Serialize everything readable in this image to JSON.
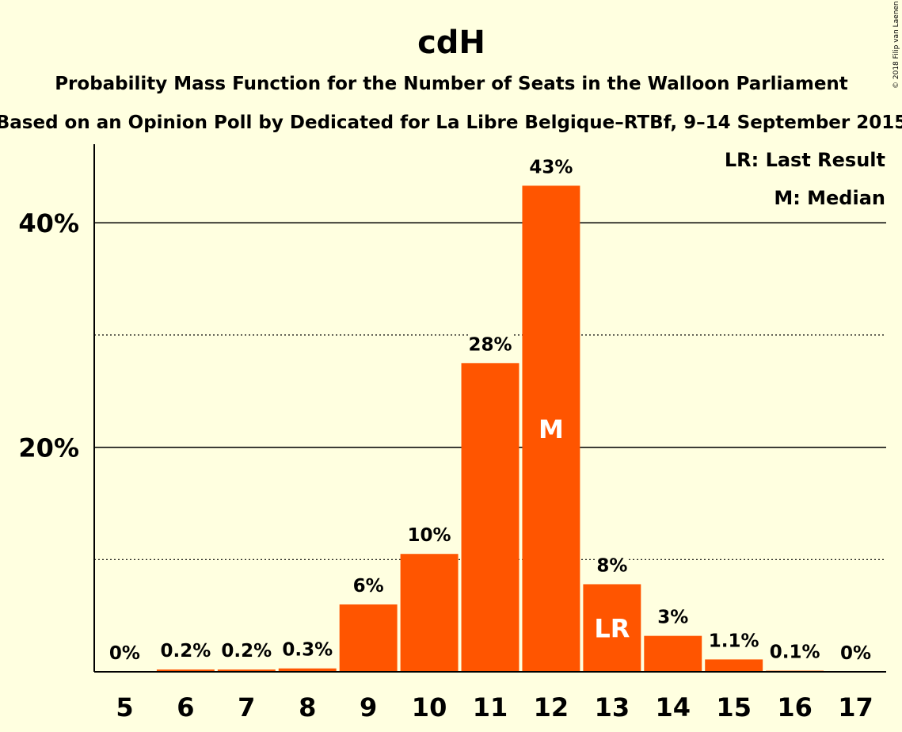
{
  "chart_data": {
    "type": "bar",
    "title": "cdH",
    "subtitle": "Probability Mass Function for the Number of Seats in the Walloon Parliament",
    "subtitle2": "Based on an Opinion Poll by Dedicated for La Libre Belgique–RTBf, 9–14 September 2015",
    "copyright": "© 2018 Filip van Laenen",
    "categories": [
      "5",
      "6",
      "7",
      "8",
      "9",
      "10",
      "11",
      "12",
      "13",
      "14",
      "15",
      "16",
      "17"
    ],
    "values": [
      0,
      0.2,
      0.2,
      0.3,
      6,
      10.5,
      27.5,
      43.3,
      7.8,
      3.2,
      1.1,
      0.1,
      0
    ],
    "data_labels": [
      "0%",
      "0.2%",
      "0.2%",
      "0.3%",
      "6%",
      "10%",
      "28%",
      "43%",
      "8%",
      "3%",
      "1.1%",
      "0.1%",
      "0%"
    ],
    "ylim": [
      0,
      47
    ],
    "y_ticks": [
      {
        "value": 20,
        "label": "20%"
      },
      {
        "value": 40,
        "label": "40%"
      }
    ],
    "minor_grid": [
      10,
      30
    ],
    "legend": [
      "LR: Last Result",
      "M: Median"
    ],
    "legend_position": "top-right",
    "markers": [
      {
        "category": "12",
        "label": "M"
      },
      {
        "category": "13",
        "label": "LR"
      }
    ],
    "colors": {
      "bar": "#ff5500",
      "background": "#ffffe0",
      "axis": "#000000",
      "marker_text": "#ffffff"
    }
  }
}
